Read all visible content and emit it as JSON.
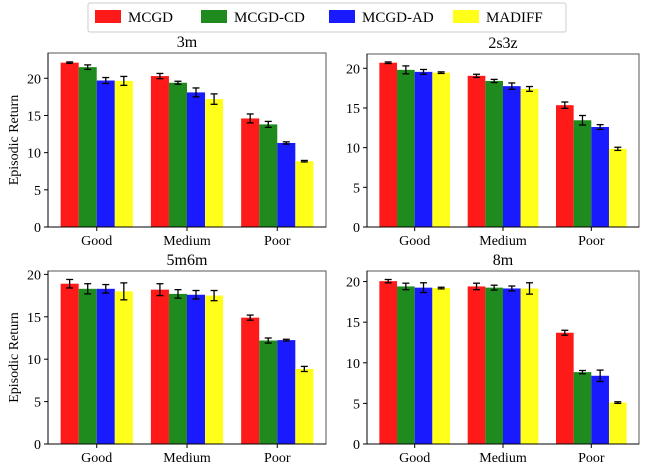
{
  "legend": {
    "placement": "top-center",
    "entries": [
      "MCGD",
      "MCGD-CD",
      "MCGD-AD",
      "MADIFF"
    ]
  },
  "colors": [
    "#ff1a1a",
    "#1f8b1f",
    "#1a1aff",
    "#ffff1a"
  ],
  "chart_data": [
    {
      "type": "bar",
      "title": "3m",
      "ylabel": "Episodic Return",
      "xlabel": "",
      "categories": [
        "Good",
        "Medium",
        "Poor"
      ],
      "ylim": [
        0,
        23.4
      ],
      "yticks": [
        0,
        5,
        10,
        15,
        20
      ],
      "grid": false,
      "series": [
        {
          "name": "MCGD",
          "values": [
            22.1,
            20.3,
            14.6
          ],
          "errors": [
            0.1,
            0.35,
            0.6
          ]
        },
        {
          "name": "MCGD-CD",
          "values": [
            21.5,
            19.4,
            13.8
          ],
          "errors": [
            0.3,
            0.2,
            0.4
          ]
        },
        {
          "name": "MCGD-AD",
          "values": [
            19.7,
            18.1,
            11.3
          ],
          "errors": [
            0.4,
            0.6,
            0.15
          ]
        },
        {
          "name": "MADIFF",
          "values": [
            19.65,
            17.2,
            8.85
          ],
          "errors": [
            0.6,
            0.7,
            0.1
          ]
        }
      ]
    },
    {
      "type": "bar",
      "title": "2s3z",
      "ylabel": "",
      "xlabel": "",
      "categories": [
        "Good",
        "Medium",
        "Poor"
      ],
      "ylim": [
        0,
        21.8
      ],
      "yticks": [
        0,
        5,
        10,
        15,
        20
      ],
      "grid": false,
      "series": [
        {
          "name": "MCGD",
          "values": [
            20.7,
            19.05,
            15.35
          ],
          "errors": [
            0.1,
            0.2,
            0.4
          ]
        },
        {
          "name": "MCGD-CD",
          "values": [
            19.8,
            18.4,
            13.45
          ],
          "errors": [
            0.5,
            0.2,
            0.6
          ]
        },
        {
          "name": "MCGD-AD",
          "values": [
            19.55,
            17.75,
            12.6
          ],
          "errors": [
            0.3,
            0.4,
            0.3
          ]
        },
        {
          "name": "MADIFF",
          "values": [
            19.45,
            17.4,
            9.85
          ],
          "errors": [
            0.1,
            0.3,
            0.2
          ]
        }
      ]
    },
    {
      "type": "bar",
      "title": "5m6m",
      "ylabel": "Episodic Return",
      "xlabel": "",
      "categories": [
        "Good",
        "Medium",
        "Poor"
      ],
      "ylim": [
        0,
        20.4
      ],
      "yticks": [
        0,
        5,
        10,
        15,
        20
      ],
      "grid": false,
      "series": [
        {
          "name": "MCGD",
          "values": [
            18.9,
            18.2,
            14.9
          ],
          "errors": [
            0.5,
            0.7,
            0.3
          ]
        },
        {
          "name": "MCGD-CD",
          "values": [
            18.3,
            17.7,
            12.2
          ],
          "errors": [
            0.6,
            0.5,
            0.3
          ]
        },
        {
          "name": "MCGD-AD",
          "values": [
            18.3,
            17.6,
            12.25
          ],
          "errors": [
            0.5,
            0.5,
            0.1
          ]
        },
        {
          "name": "MADIFF",
          "values": [
            18.0,
            17.5,
            8.85
          ],
          "errors": [
            1.0,
            0.6,
            0.3
          ]
        }
      ]
    },
    {
      "type": "bar",
      "title": "8m",
      "ylabel": "",
      "xlabel": "",
      "categories": [
        "Good",
        "Medium",
        "Poor"
      ],
      "ylim": [
        0,
        21.3
      ],
      "yticks": [
        0,
        5,
        10,
        15,
        20
      ],
      "grid": false,
      "series": [
        {
          "name": "MCGD",
          "values": [
            20.05,
            19.4,
            13.7
          ],
          "errors": [
            0.2,
            0.4,
            0.3
          ]
        },
        {
          "name": "MCGD-CD",
          "values": [
            19.4,
            19.25,
            8.85
          ],
          "errors": [
            0.4,
            0.3,
            0.2
          ]
        },
        {
          "name": "MCGD-AD",
          "values": [
            19.25,
            19.15,
            8.4
          ],
          "errors": [
            0.6,
            0.3,
            0.7
          ]
        },
        {
          "name": "MADIFF",
          "values": [
            19.2,
            19.15,
            5.1
          ],
          "errors": [
            0.1,
            0.7,
            0.1
          ]
        }
      ]
    }
  ]
}
